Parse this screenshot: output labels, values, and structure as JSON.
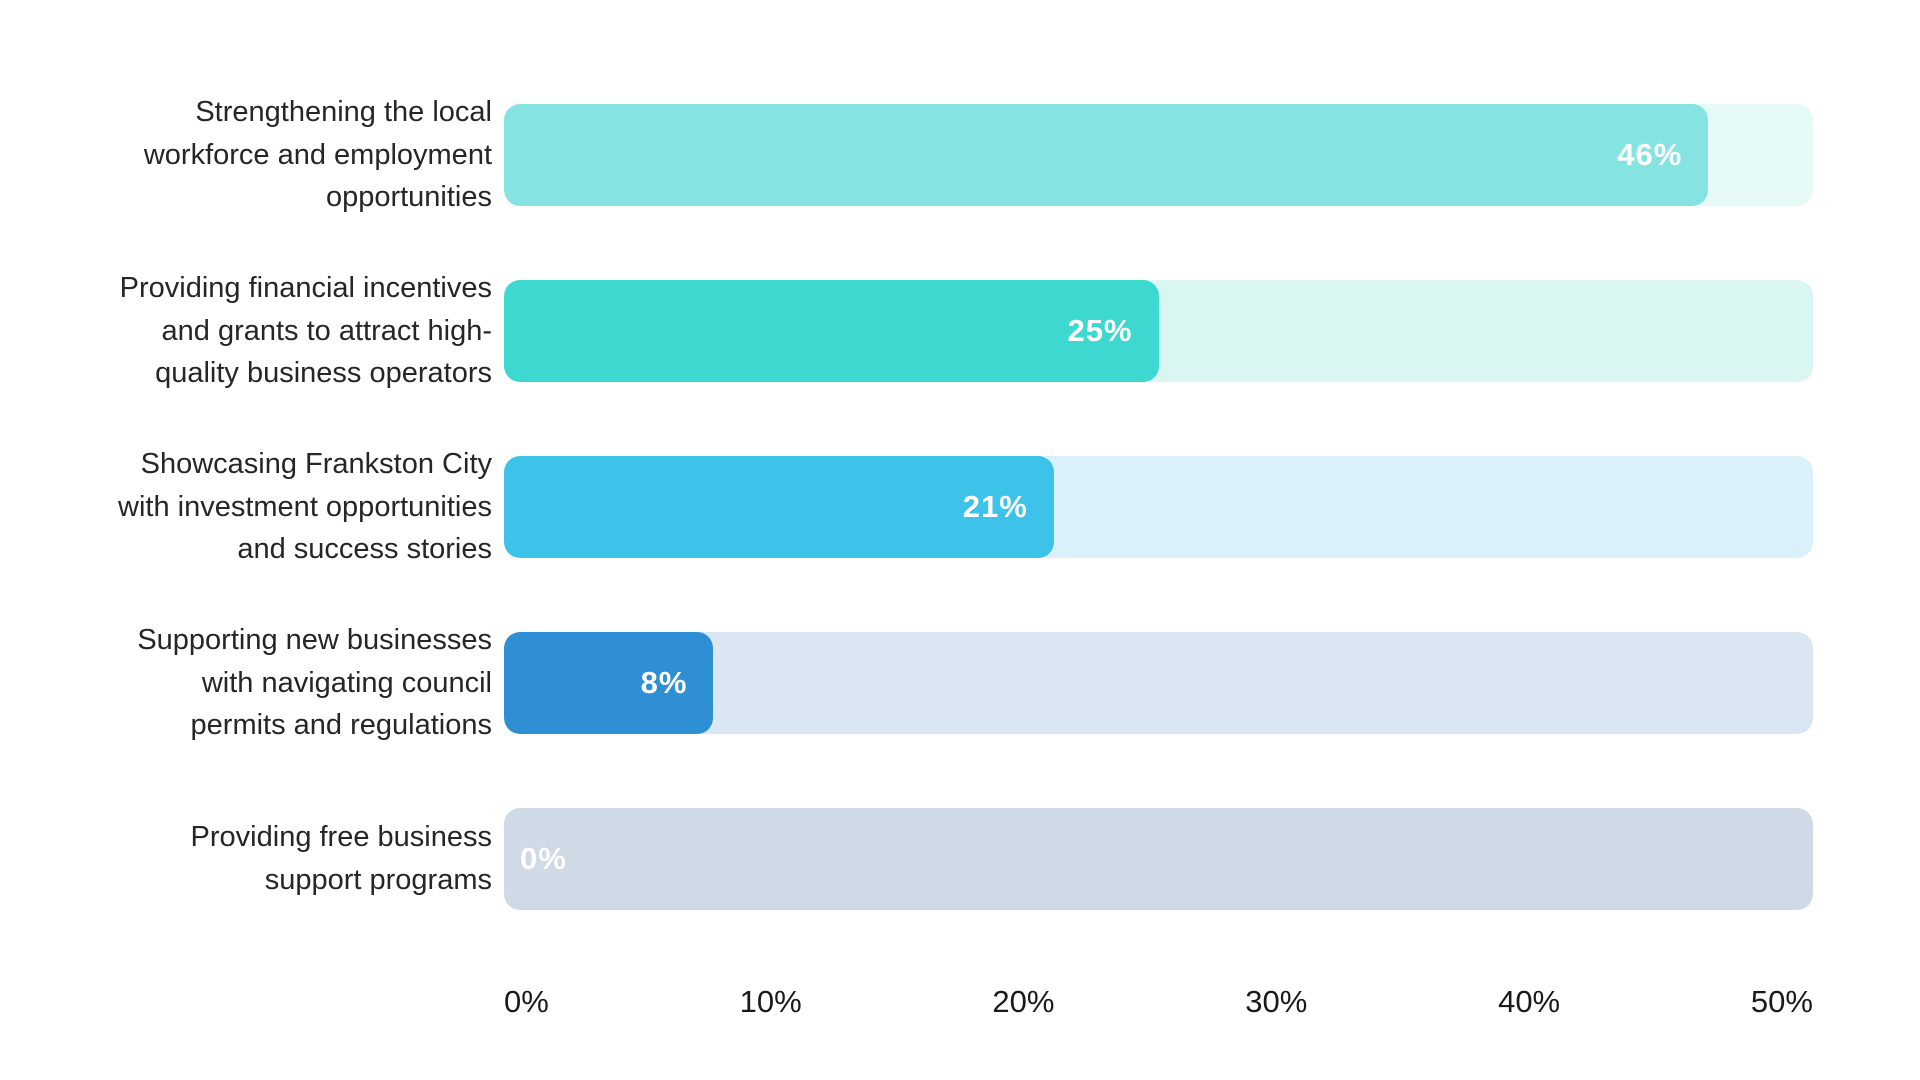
{
  "chart_data": {
    "type": "bar",
    "orientation": "horizontal",
    "title": "",
    "xlabel": "",
    "ylabel": "",
    "categories": [
      "Strengthening the local workforce and employment opportunities",
      "Providing financial incentives and grants to attract high-quality business operators",
      "Showcasing Frankston City with investment opportunities and success stories",
      "Supporting new businesses with navigating council permits and regulations",
      "Providing free business support programs"
    ],
    "categories_wrapped": [
      [
        "Strengthening the local",
        "workforce and employment",
        "opportunities"
      ],
      [
        "Providing financial incentives",
        "and grants to attract high-",
        "quality business operators"
      ],
      [
        "Showcasing Frankston City",
        "with investment opportunities",
        "and success stories"
      ],
      [
        "Supporting new businesses",
        "with navigating council",
        "permits and regulations"
      ],
      [
        "Providing free business",
        "support programs"
      ]
    ],
    "values": [
      46,
      25,
      21,
      8,
      0
    ],
    "value_labels": [
      "46%",
      "25%",
      "21%",
      "8%",
      "0%"
    ],
    "bar_colors": [
      "#85E4E1",
      "#3DD8D0",
      "#3DC2E9",
      "#2E8FD5",
      "#CFDAE6"
    ],
    "track_colors": [
      "#E6FAF8",
      "#D9F6F2",
      "#DAF0FA",
      "#DAE7F3",
      "#CFDAE6"
    ],
    "x_ticks": [
      "0%",
      "10%",
      "20%",
      "30%",
      "40%",
      "50%"
    ],
    "xlim": [
      0,
      50
    ],
    "grid": "off",
    "legend": "none",
    "background": "#FFFFFF",
    "value_label_color": "#FFFFFF",
    "category_label_color": "#262626",
    "axis_label_color": "#1A1A1A"
  }
}
